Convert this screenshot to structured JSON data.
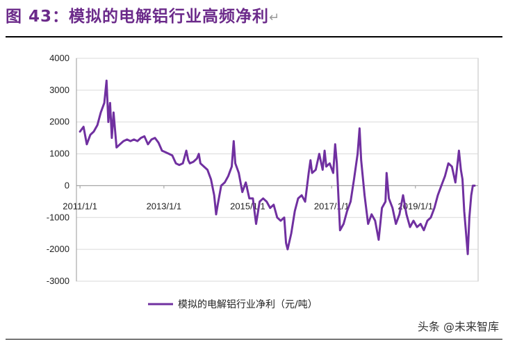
{
  "figure": {
    "title": "图 43：模拟的电解铝行业高频净利",
    "return_mark": "↵",
    "watermark": "头条 @未来智库"
  },
  "colors": {
    "series": "#7030a0",
    "title": "#6b2a8a",
    "grid": "#d9d9d9",
    "axis": "#bfbfbf"
  },
  "chart_data": {
    "type": "line",
    "title": "",
    "xlabel": "",
    "ylabel": "",
    "ylim": [
      -3000,
      4000
    ],
    "yticks": [
      4000,
      3000,
      2000,
      1000,
      0,
      -1000,
      -2000,
      -3000
    ],
    "ytick_labels": [
      "4000",
      "3000",
      "2000",
      "1000",
      "0",
      "-1000",
      "-2000",
      "-3000"
    ],
    "xlim": [
      "2010-12-01",
      "2020-06-30"
    ],
    "xtick_labels": [
      {
        "date": "2011-01-01",
        "label": "2011/1/1"
      },
      {
        "date": "2013-01-01",
        "label": "2013/1/1"
      },
      {
        "date": "2015-01-01",
        "label": "2015/1/1"
      },
      {
        "date": "2017-01-01",
        "label": "2017/1/1"
      },
      {
        "date": "2019-01-01",
        "label": "2019/1/1"
      }
    ],
    "grid": "horizontal",
    "legend": "bottom",
    "series": [
      {
        "name": "模拟的电解铝行业净利（元/吨）",
        "points": [
          [
            "2011-01-01",
            1700
          ],
          [
            "2011-02-01",
            1850
          ],
          [
            "2011-03-01",
            1300
          ],
          [
            "2011-04-01",
            1600
          ],
          [
            "2011-05-01",
            1700
          ],
          [
            "2011-06-01",
            1900
          ],
          [
            "2011-07-01",
            2300
          ],
          [
            "2011-08-01",
            2600
          ],
          [
            "2011-08-20",
            3300
          ],
          [
            "2011-09-05",
            2000
          ],
          [
            "2011-09-20",
            2600
          ],
          [
            "2011-10-05",
            1500
          ],
          [
            "2011-10-20",
            2300
          ],
          [
            "2011-11-15",
            1200
          ],
          [
            "2011-12-15",
            1300
          ],
          [
            "2012-01-15",
            1400
          ],
          [
            "2012-02-15",
            1450
          ],
          [
            "2012-03-15",
            1400
          ],
          [
            "2012-04-15",
            1450
          ],
          [
            "2012-05-15",
            1400
          ],
          [
            "2012-06-15",
            1500
          ],
          [
            "2012-07-15",
            1550
          ],
          [
            "2012-08-15",
            1300
          ],
          [
            "2012-09-15",
            1450
          ],
          [
            "2012-10-15",
            1500
          ],
          [
            "2012-11-15",
            1350
          ],
          [
            "2012-12-15",
            1100
          ],
          [
            "2013-01-15",
            1050
          ],
          [
            "2013-02-15",
            1000
          ],
          [
            "2013-03-15",
            950
          ],
          [
            "2013-04-15",
            700
          ],
          [
            "2013-05-15",
            650
          ],
          [
            "2013-06-15",
            700
          ],
          [
            "2013-07-15",
            1100
          ],
          [
            "2013-08-01",
            800
          ],
          [
            "2013-08-15",
            700
          ],
          [
            "2013-09-15",
            750
          ],
          [
            "2013-10-15",
            850
          ],
          [
            "2013-11-01",
            1000
          ],
          [
            "2013-11-15",
            700
          ],
          [
            "2013-12-15",
            600
          ],
          [
            "2014-01-15",
            500
          ],
          [
            "2014-02-15",
            200
          ],
          [
            "2014-03-15",
            -300
          ],
          [
            "2014-04-01",
            -900
          ],
          [
            "2014-04-15",
            -600
          ],
          [
            "2014-05-15",
            0
          ],
          [
            "2014-06-15",
            100
          ],
          [
            "2014-07-15",
            300
          ],
          [
            "2014-08-15",
            600
          ],
          [
            "2014-09-01",
            1400
          ],
          [
            "2014-09-15",
            700
          ],
          [
            "2014-10-15",
            400
          ],
          [
            "2014-11-15",
            -200
          ],
          [
            "2014-12-15",
            100
          ],
          [
            "2015-01-15",
            -400
          ],
          [
            "2015-02-15",
            -400
          ],
          [
            "2015-03-15",
            -1200
          ],
          [
            "2015-04-15",
            -500
          ],
          [
            "2015-05-15",
            -400
          ],
          [
            "2015-06-15",
            -500
          ],
          [
            "2015-07-15",
            -700
          ],
          [
            "2015-08-15",
            -600
          ],
          [
            "2015-09-15",
            -1000
          ],
          [
            "2015-10-15",
            -1100
          ],
          [
            "2015-11-15",
            -1000
          ],
          [
            "2015-12-01",
            -1800
          ],
          [
            "2015-12-15",
            -2000
          ],
          [
            "2016-01-15",
            -1500
          ],
          [
            "2016-02-15",
            -800
          ],
          [
            "2016-03-15",
            -400
          ],
          [
            "2016-04-15",
            -300
          ],
          [
            "2016-05-15",
            -500
          ],
          [
            "2016-06-15",
            400
          ],
          [
            "2016-07-01",
            800
          ],
          [
            "2016-07-15",
            400
          ],
          [
            "2016-08-15",
            500
          ],
          [
            "2016-09-15",
            1000
          ],
          [
            "2016-10-15",
            500
          ],
          [
            "2016-11-01",
            1100
          ],
          [
            "2016-11-15",
            600
          ],
          [
            "2016-12-15",
            700
          ],
          [
            "2017-01-15",
            400
          ],
          [
            "2017-02-01",
            1300
          ],
          [
            "2017-02-15",
            700
          ],
          [
            "2017-03-15",
            -1400
          ],
          [
            "2017-04-15",
            -1200
          ],
          [
            "2017-05-15",
            -800
          ],
          [
            "2017-06-15",
            -500
          ],
          [
            "2017-07-15",
            200
          ],
          [
            "2017-08-15",
            1000
          ],
          [
            "2017-09-01",
            1800
          ],
          [
            "2017-09-15",
            800
          ],
          [
            "2017-10-15",
            -300
          ],
          [
            "2017-11-15",
            -1200
          ],
          [
            "2017-12-15",
            -900
          ],
          [
            "2018-01-15",
            -1100
          ],
          [
            "2018-02-15",
            -1700
          ],
          [
            "2018-03-15",
            -700
          ],
          [
            "2018-04-15",
            -500
          ],
          [
            "2018-04-25",
            400
          ],
          [
            "2018-05-15",
            -400
          ],
          [
            "2018-06-15",
            -700
          ],
          [
            "2018-07-15",
            -1200
          ],
          [
            "2018-08-15",
            -900
          ],
          [
            "2018-09-15",
            -300
          ],
          [
            "2018-10-15",
            -900
          ],
          [
            "2018-11-15",
            -1300
          ],
          [
            "2018-12-15",
            -1100
          ],
          [
            "2019-01-15",
            -1300
          ],
          [
            "2019-02-15",
            -1200
          ],
          [
            "2019-03-15",
            -1400
          ],
          [
            "2019-04-15",
            -1100
          ],
          [
            "2019-05-15",
            -1000
          ],
          [
            "2019-06-15",
            -700
          ],
          [
            "2019-07-15",
            -300
          ],
          [
            "2019-08-15",
            0
          ],
          [
            "2019-09-15",
            300
          ],
          [
            "2019-10-15",
            700
          ],
          [
            "2019-11-15",
            600
          ],
          [
            "2019-12-15",
            100
          ],
          [
            "2020-01-15",
            1100
          ],
          [
            "2020-02-01",
            500
          ],
          [
            "2020-02-15",
            200
          ],
          [
            "2020-03-01",
            -800
          ],
          [
            "2020-03-15",
            -1400
          ],
          [
            "2020-04-01",
            -2150
          ],
          [
            "2020-04-15",
            -1000
          ],
          [
            "2020-05-01",
            -300
          ],
          [
            "2020-05-15",
            0
          ],
          [
            "2020-05-31",
            0
          ]
        ]
      }
    ]
  }
}
